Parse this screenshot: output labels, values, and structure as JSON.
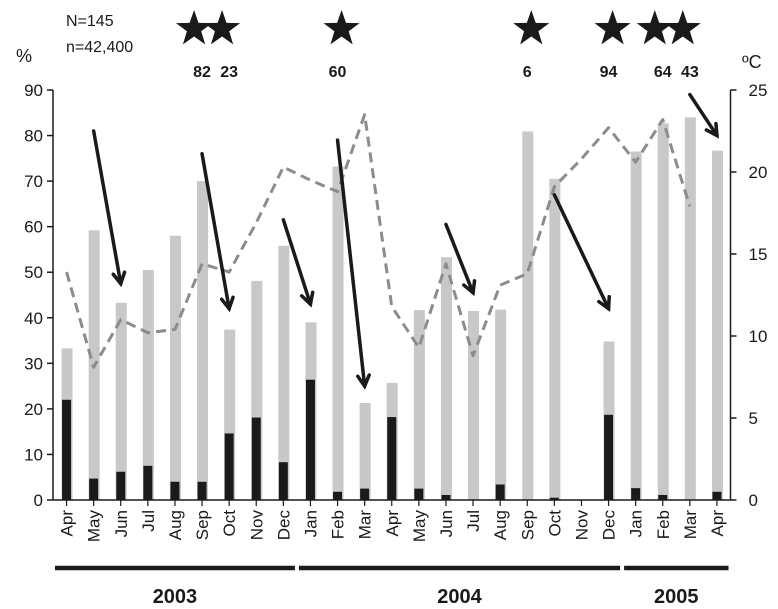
{
  "info": {
    "n_line1": "N=145",
    "n_line2": "n=42,400"
  },
  "axes": {
    "left_unit": "%",
    "right_unit": "ºC"
  },
  "colors": {
    "grey_bar": "#c8c8c8",
    "black_bar": "#1a1a1a",
    "temp_line": "#8c8c8c",
    "arrow": "#1a1a1a",
    "star": "#1a1a1a"
  },
  "chart_data": {
    "type": "bar",
    "categories": [
      "Apr",
      "May",
      "Jun",
      "Jul",
      "Aug",
      "Sep",
      "Oct",
      "Nov",
      "Dec",
      "Jan",
      "Feb",
      "Mar",
      "Apr",
      "May",
      "Jun",
      "Jul",
      "Aug",
      "Sep",
      "Oct",
      "Nov",
      "Dec",
      "Jan",
      "Feb",
      "Mar",
      "Apr"
    ],
    "series": [
      {
        "values": [
          33.3,
          59.2,
          43.3,
          50.5,
          58.0,
          70.0,
          37.4,
          48.1,
          55.8,
          39.0,
          73.2,
          21.3,
          25.7,
          41.7,
          53.3,
          41.5,
          41.8,
          80.9,
          70.5,
          0,
          34.8,
          76.5,
          82.7,
          84.0,
          76.7
        ]
      },
      {
        "values": [
          22.0,
          4.7,
          6.2,
          7.5,
          4.0,
          4.0,
          14.6,
          18.1,
          8.3,
          26.4,
          1.8,
          2.5,
          18.2,
          2.5,
          1.1,
          0,
          3.4,
          0,
          0.5,
          0,
          18.7,
          2.6,
          1.1,
          0,
          1.8
        ]
      },
      {
        "axis": "right",
        "values": [
          13.9,
          8.1,
          11.0,
          10.2,
          10.4,
          14.4,
          13.9,
          16.9,
          20.3,
          19.5,
          18.8,
          23.5,
          11.8,
          9.3,
          14.4,
          8.8,
          13.1,
          13.8,
          19.1,
          20.8,
          22.7,
          20.6,
          23.2,
          17.9,
          null
        ]
      }
    ],
    "groups": [
      {
        "label": "2003",
        "from": 0,
        "to": 8
      },
      {
        "label": "2004",
        "from": 9,
        "to": 20
      },
      {
        "label": "2005",
        "from": 21,
        "to": 24
      }
    ],
    "stars": [
      {
        "index": 5,
        "count": 2,
        "label": "82"
      },
      {
        "index": 6,
        "count": 0,
        "label": "23"
      },
      {
        "index": 10,
        "count": 1,
        "label": "60"
      },
      {
        "index": 17,
        "count": 1,
        "label": "6"
      },
      {
        "index": 20,
        "count": 1,
        "label": "94"
      },
      {
        "index": 22,
        "count": 2,
        "label": "64"
      },
      {
        "index": 23,
        "count": 0,
        "label": "43"
      }
    ],
    "arrows": [
      {
        "from_index": 1,
        "from_pct": 81,
        "to_index": 2,
        "to_pct": 47.5
      },
      {
        "from_index": 5,
        "from_pct": 76,
        "to_index": 6,
        "to_pct": 42
      },
      {
        "from_index": 8,
        "from_pct": 61.5,
        "to_index": 9,
        "to_pct": 43
      },
      {
        "from_index": 10,
        "from_pct": 79,
        "to_index": 11,
        "to_pct": 25
      },
      {
        "from_index": 14,
        "from_pct": 60.5,
        "to_index": 15,
        "to_pct": 45.5
      },
      {
        "from_index": 18,
        "from_pct": 67,
        "to_index": 20,
        "to_pct": 42
      },
      {
        "from_index": 23,
        "from_pct": 89,
        "to_index": 24,
        "to_pct": 80
      }
    ],
    "ylim_left": [
      0,
      90
    ],
    "yticks_left": [
      0,
      10,
      20,
      30,
      40,
      50,
      60,
      70,
      80,
      90
    ],
    "ylim_right": [
      0,
      25
    ],
    "yticks_right": [
      0,
      5,
      10,
      15,
      20,
      25
    ]
  }
}
